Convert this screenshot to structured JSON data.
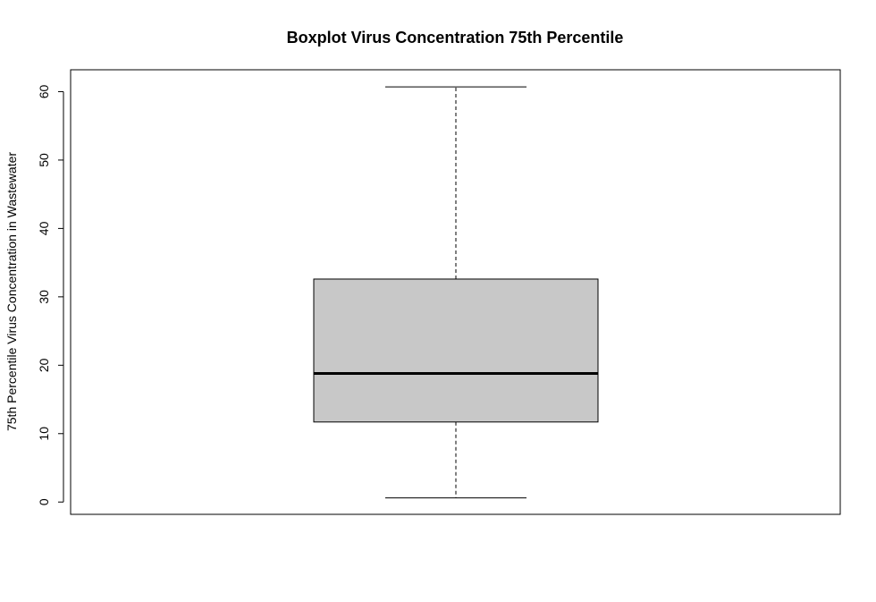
{
  "chart_data": {
    "type": "boxplot",
    "title": "Boxplot Virus Concentration 75th Percentile",
    "xlabel": "",
    "ylabel": "75th Percentile Virus Concentration in Wastewater",
    "ylim": [
      -1.8,
      63.2
    ],
    "yticks": [
      0,
      10,
      20,
      30,
      40,
      50,
      60
    ],
    "ytick_labels": [
      "0",
      "10",
      "20",
      "30",
      "40",
      "50",
      "60"
    ],
    "grid": false,
    "legend": "none",
    "box": {
      "min": 0.6,
      "q1": 11.7,
      "median": 18.8,
      "q3": 32.6,
      "max": 60.7
    },
    "colors": {
      "box_fill": "#c8c8c8",
      "line": "#000000"
    }
  }
}
